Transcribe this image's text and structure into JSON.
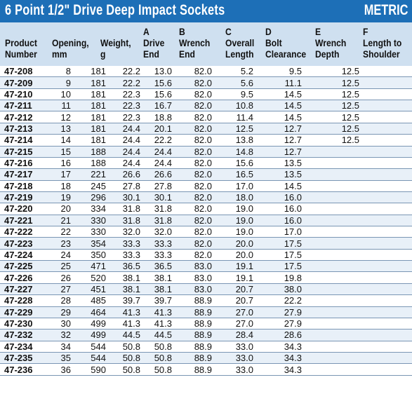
{
  "header": {
    "title": "6 Point 1/2\" Drive Deep Impact Sockets",
    "badge": "METRIC"
  },
  "columns": [
    [
      "",
      "Product",
      "Number"
    ],
    [
      "",
      "Opening,",
      "mm"
    ],
    [
      "",
      "Weight,",
      "g"
    ],
    [
      "A",
      "Drive",
      "End"
    ],
    [
      "B",
      "Wrench",
      "End"
    ],
    [
      "C",
      "Overall",
      "Length"
    ],
    [
      "D",
      "Bolt",
      "Clearance"
    ],
    [
      "E",
      "Wrench",
      "Depth"
    ],
    [
      "F",
      "Length to",
      "Shoulder"
    ]
  ],
  "rows": [
    [
      "47-208",
      "8",
      "181",
      "22.2",
      "13.0",
      "82.0",
      "5.2",
      "9.5",
      "12.5"
    ],
    [
      "47-209",
      "9",
      "181",
      "22.2",
      "15.6",
      "82.0",
      "5.6",
      "11.1",
      "12.5"
    ],
    [
      "47-210",
      "10",
      "181",
      "22.3",
      "15.6",
      "82.0",
      "9.5",
      "14.5",
      "12.5"
    ],
    [
      "47-211",
      "11",
      "181",
      "22.3",
      "16.7",
      "82.0",
      "10.8",
      "14.5",
      "12.5"
    ],
    [
      "47-212",
      "12",
      "181",
      "22.3",
      "18.8",
      "82.0",
      "11.4",
      "14.5",
      "12.5"
    ],
    [
      "47-213",
      "13",
      "181",
      "24.4",
      "20.1",
      "82.0",
      "12.5",
      "12.7",
      "12.5"
    ],
    [
      "47-214",
      "14",
      "181",
      "24.4",
      "22.2",
      "82.0",
      "13.8",
      "12.7",
      "12.5"
    ],
    [
      "47-215",
      "15",
      "188",
      "24.4",
      "24.4",
      "82.0",
      "14.8",
      "12.7",
      ""
    ],
    [
      "47-216",
      "16",
      "188",
      "24.4",
      "24.4",
      "82.0",
      "15.6",
      "13.5",
      ""
    ],
    [
      "47-217",
      "17",
      "221",
      "26.6",
      "26.6",
      "82.0",
      "16.5",
      "13.5",
      ""
    ],
    [
      "47-218",
      "18",
      "245",
      "27.8",
      "27.8",
      "82.0",
      "17.0",
      "14.5",
      ""
    ],
    [
      "47-219",
      "19",
      "296",
      "30.1",
      "30.1",
      "82.0",
      "18.0",
      "16.0",
      ""
    ],
    [
      "47-220",
      "20",
      "334",
      "31.8",
      "31.8",
      "82.0",
      "19.0",
      "16.0",
      ""
    ],
    [
      "47-221",
      "21",
      "330",
      "31.8",
      "31.8",
      "82.0",
      "19.0",
      "16.0",
      ""
    ],
    [
      "47-222",
      "22",
      "330",
      "32.0",
      "32.0",
      "82.0",
      "19.0",
      "17.0",
      ""
    ],
    [
      "47-223",
      "23",
      "354",
      "33.3",
      "33.3",
      "82.0",
      "20.0",
      "17.5",
      ""
    ],
    [
      "47-224",
      "24",
      "350",
      "33.3",
      "33.3",
      "82.0",
      "20.0",
      "17.5",
      ""
    ],
    [
      "47-225",
      "25",
      "471",
      "36.5",
      "36.5",
      "83.0",
      "19.1",
      "17.5",
      ""
    ],
    [
      "47-226",
      "26",
      "520",
      "38.1",
      "38.1",
      "83.0",
      "19.1",
      "19.8",
      ""
    ],
    [
      "47-227",
      "27",
      "451",
      "38.1",
      "38.1",
      "83.0",
      "20.7",
      "38.0",
      ""
    ],
    [
      "47-228",
      "28",
      "485",
      "39.7",
      "39.7",
      "88.9",
      "20.7",
      "22.2",
      ""
    ],
    [
      "47-229",
      "29",
      "464",
      "41.3",
      "41.3",
      "88.9",
      "27.0",
      "27.9",
      ""
    ],
    [
      "47-230",
      "30",
      "499",
      "41.3",
      "41.3",
      "88.9",
      "27.0",
      "27.9",
      ""
    ],
    [
      "47-232",
      "32",
      "499",
      "44.5",
      "44.5",
      "88.9",
      "28.4",
      "28.6",
      ""
    ],
    [
      "47-234",
      "34",
      "544",
      "50.8",
      "50.8",
      "88.9",
      "33.0",
      "34.3",
      ""
    ],
    [
      "47-235",
      "35",
      "544",
      "50.8",
      "50.8",
      "88.9",
      "33.0",
      "34.3",
      ""
    ],
    [
      "47-236",
      "36",
      "590",
      "50.8",
      "50.8",
      "88.9",
      "33.0",
      "34.3",
      ""
    ]
  ],
  "colors": {
    "banner": "#1d6fb7",
    "header_bg": "#cfe0f0",
    "row_alt": "#e8f0f8"
  }
}
